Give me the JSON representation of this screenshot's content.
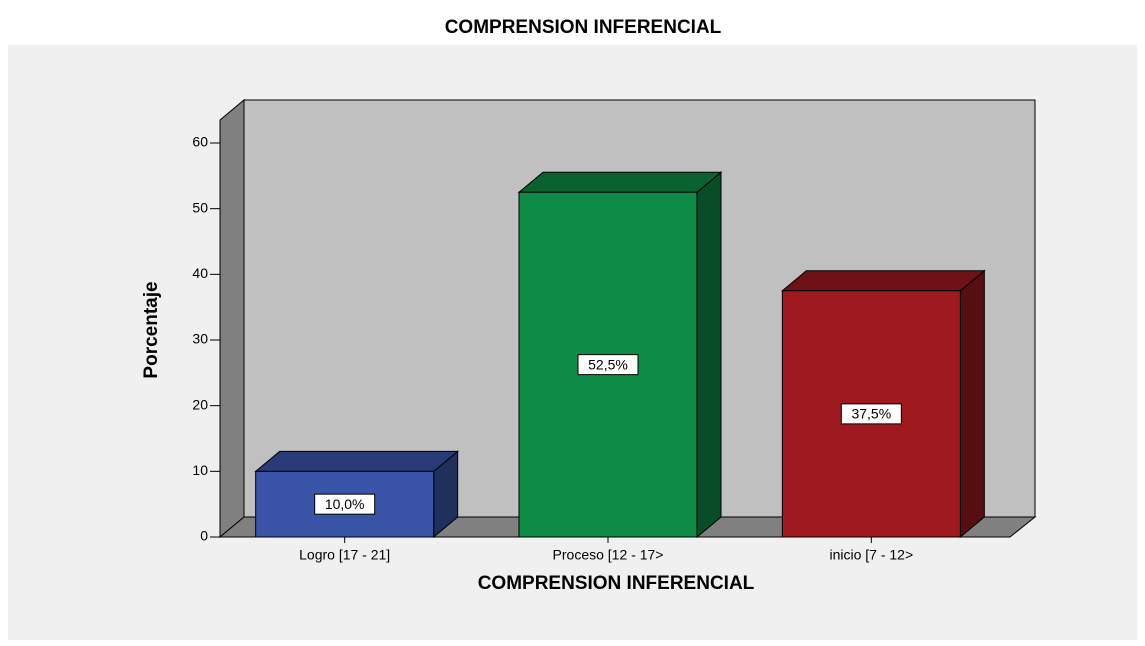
{
  "chart_data": {
    "type": "bar3d",
    "title": "COMPRENSION INFERENCIAL",
    "x_label": "COMPRENSION INFERENCIAL",
    "y_label": "Porcentaje",
    "categories": [
      "Logro [17 - 21]",
      "Proceso [12 - 17>",
      "inicio [7 - 12>"
    ],
    "values": [
      10.0,
      52.5,
      37.5
    ],
    "value_labels": [
      "10,0%",
      "52,5%",
      "37,5%"
    ],
    "colors": [
      "#3a55a8",
      "#0e8c46",
      "#9e1a1e"
    ],
    "ylim": [
      0,
      60
    ],
    "yticks": [
      0,
      10,
      20,
      30,
      40,
      50,
      60
    ]
  }
}
